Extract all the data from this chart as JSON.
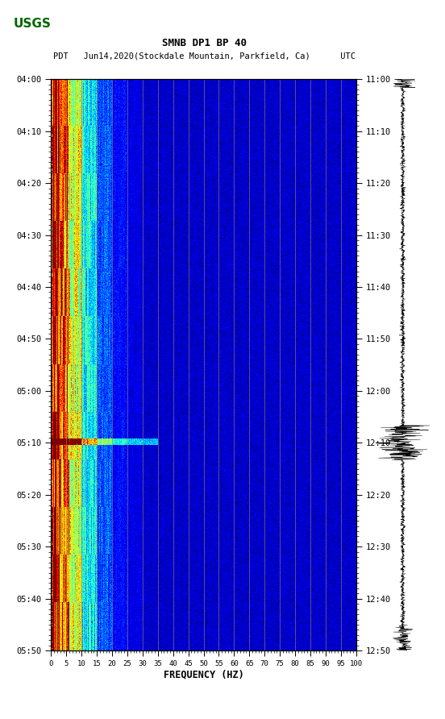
{
  "title_line1": "SMNB DP1 BP 40",
  "title_line2": "PDT   Jun14,2020(Stockdale Mountain, Parkfield, Ca)      UTC",
  "xlabel": "FREQUENCY (HZ)",
  "freq_min": 0,
  "freq_max": 100,
  "freq_ticks": [
    0,
    5,
    10,
    15,
    20,
    25,
    30,
    35,
    40,
    45,
    50,
    55,
    60,
    65,
    70,
    75,
    80,
    85,
    90,
    95,
    100
  ],
  "left_time_labels": [
    "04:00",
    "04:10",
    "04:20",
    "04:30",
    "04:40",
    "04:50",
    "05:00",
    "05:10",
    "05:20",
    "05:30",
    "05:40",
    "05:50"
  ],
  "right_time_labels": [
    "11:00",
    "11:10",
    "11:20",
    "11:30",
    "11:40",
    "11:50",
    "12:00",
    "12:10",
    "12:20",
    "12:30",
    "12:40",
    "12:50"
  ],
  "time_rows": 12,
  "colormap": "jet",
  "vertical_lines_freqs": [
    5,
    10,
    15,
    20,
    25,
    30,
    35,
    40,
    45,
    50,
    55,
    60,
    65,
    70,
    75,
    80,
    85,
    90,
    95,
    100
  ],
  "vline_color": "#AA8855",
  "fig_width": 5.52,
  "fig_height": 8.92,
  "dpi": 100,
  "usgs_color": "#006600"
}
